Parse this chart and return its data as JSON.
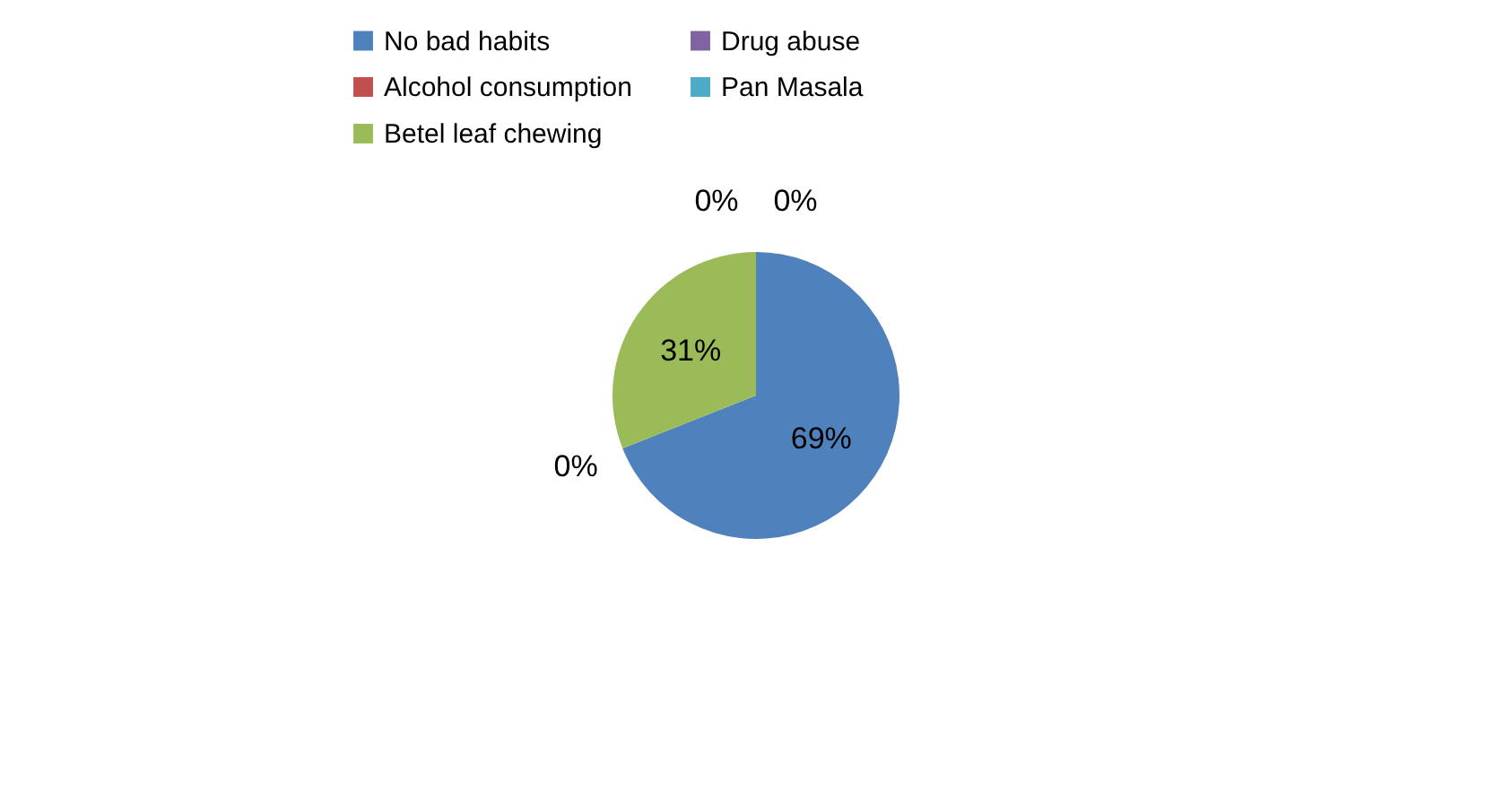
{
  "chart_data": {
    "type": "pie",
    "categories": [
      "No bad habits",
      "Alcohol consumption",
      "Betel leaf chewing",
      "Drug abuse",
      "Pan Masala"
    ],
    "values": [
      69,
      0,
      31,
      0,
      0
    ],
    "colors": [
      "#4f81bd",
      "#c0504d",
      "#9bbb59",
      "#8064a2",
      "#4bacc6"
    ],
    "value_labels": [
      "69%",
      "0%",
      "31%",
      "0%",
      "0%"
    ],
    "legend": "top"
  }
}
